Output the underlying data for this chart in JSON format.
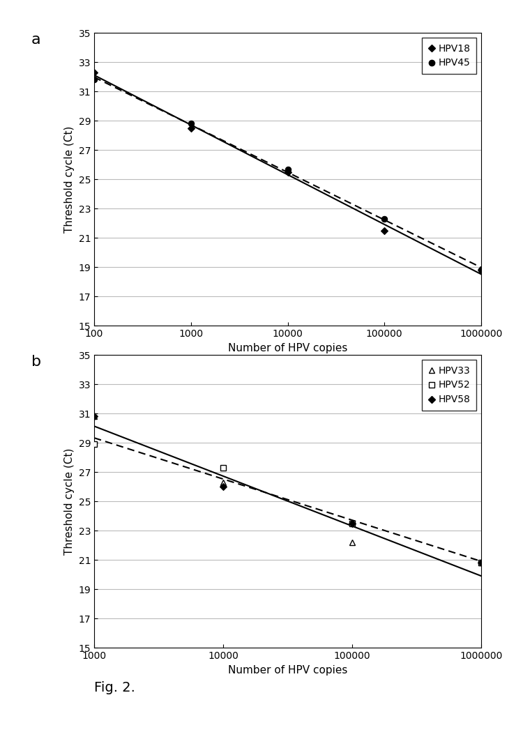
{
  "fig_label_a": "a",
  "fig_label_b": "b",
  "fig_caption": "Fig. 2.",
  "background_color": "#ffffff",
  "panel_a": {
    "xlabel": "Number of HPV copies",
    "ylabel": "Threshold cycle (Ct)",
    "xlim": [
      100,
      1000000
    ],
    "ylim": [
      15,
      35
    ],
    "yticks": [
      15,
      17,
      19,
      21,
      23,
      25,
      27,
      29,
      31,
      33,
      35
    ],
    "xtick_vals": [
      100,
      1000,
      10000,
      100000,
      1000000
    ],
    "xtick_labels": [
      "100",
      "1000",
      "10000",
      "100000",
      "1000000"
    ],
    "hpv18": {
      "label": "HPV18",
      "x_data": [
        100,
        1000,
        10000,
        100000,
        1000000
      ],
      "y_data": [
        32.3,
        28.5,
        25.5,
        21.5,
        18.8
      ],
      "line_style": "solid",
      "marker": "D",
      "marker_size": 5,
      "marker_face": "black"
    },
    "hpv45": {
      "label": "HPV45",
      "x_data": [
        100,
        1000,
        10000,
        100000,
        1000000
      ],
      "y_data": [
        31.8,
        28.8,
        25.7,
        22.3,
        18.8
      ],
      "line_style": "dashed",
      "marker": "o",
      "marker_size": 6,
      "marker_face": "black"
    }
  },
  "panel_b": {
    "xlabel": "Number of HPV copies",
    "ylabel": "Threshold cycle (Ct)",
    "xlim": [
      1000,
      1000000
    ],
    "ylim": [
      15,
      35
    ],
    "yticks": [
      15,
      17,
      19,
      21,
      23,
      25,
      27,
      29,
      31,
      33,
      35
    ],
    "xtick_vals": [
      1000,
      10000,
      100000,
      1000000
    ],
    "xtick_labels": [
      "1000",
      "10000",
      "100000",
      "1000000"
    ],
    "hpv33": {
      "label": "HPV33",
      "x_data": [
        1000,
        10000,
        100000,
        1000000
      ],
      "y_data": [
        30.8,
        26.3,
        22.2,
        20.8
      ],
      "line_style": "solid",
      "marker": "^",
      "marker_size": 6,
      "marker_face": "none"
    },
    "hpv52": {
      "label": "HPV52",
      "x_data": [
        1000,
        10000,
        100000,
        1000000
      ],
      "y_data": [
        28.9,
        27.3,
        23.5,
        20.8
      ],
      "line_style": "dashed",
      "marker": "s",
      "marker_size": 6,
      "marker_face": "white"
    },
    "hpv58": {
      "label": "HPV58",
      "x_data": [
        1000,
        10000,
        100000,
        1000000
      ],
      "y_data": [
        30.8,
        26.0,
        23.5,
        20.8
      ],
      "line_style": "solid",
      "marker": "D",
      "marker_size": 5,
      "marker_face": "black"
    },
    "solid_line_y": [
      30.8,
      20.8
    ],
    "dashed_line_y": [
      28.9,
      19.2
    ]
  }
}
